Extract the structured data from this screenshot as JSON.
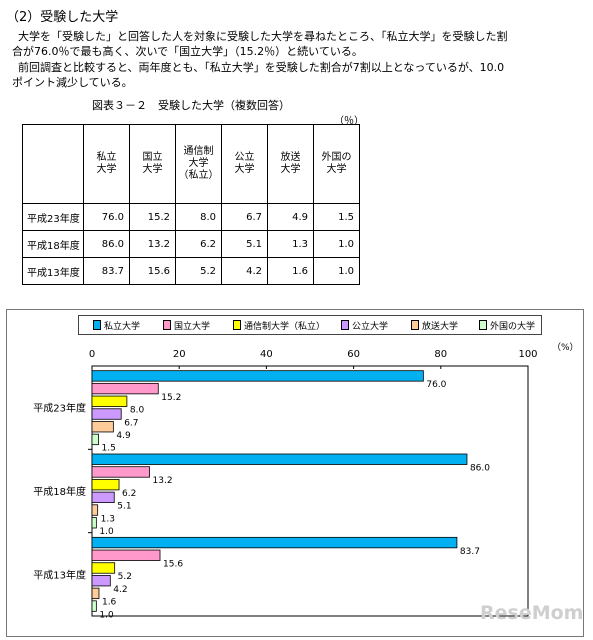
{
  "section_title": "（2）受験した大学",
  "paragraphs": [
    "大学を「受験した」と回答した人を対象に受験した大学を尋ねたところ、「私立大学」を受験した割",
    "合が76.0％で最も高く、次いで「国立大学」（15.2％）と続いている。",
    "前回調査と比較すると、両年度とも、「私立大学」を受験した割合が7割以上となっているが、10.0",
    "ポイント減少している。"
  ],
  "table": {
    "caption": "図表３－２　受験した大学（複数回答）",
    "unit": "（％）",
    "headers": [
      "私立\n大学",
      "国立\n大学",
      "通信制\n大学\n（私立）",
      "公立\n大学",
      "放送\n大学",
      "外国の\n大学"
    ],
    "rows": [
      {
        "label": "平成23年度",
        "cells": [
          "76.0",
          "15.2",
          "8.0",
          "6.7",
          "4.9",
          "1.5"
        ]
      },
      {
        "label": "平成18年度",
        "cells": [
          "86.0",
          "13.2",
          "6.2",
          "5.1",
          "1.3",
          "1.0"
        ]
      },
      {
        "label": "平成13年度",
        "cells": [
          "83.7",
          "15.6",
          "5.2",
          "4.2",
          "1.6",
          "1.0"
        ]
      }
    ]
  },
  "chart_data": {
    "type": "bar",
    "orientation": "horizontal",
    "categories": [
      "平成23年度",
      "平成18年度",
      "平成13年度"
    ],
    "series": [
      {
        "name": "私立大学",
        "color": "#00b0f0",
        "values": [
          76.0,
          86.0,
          83.7
        ]
      },
      {
        "name": "国立大学",
        "color": "#ff99cc",
        "values": [
          15.2,
          13.2,
          15.6
        ]
      },
      {
        "name": "通信制大学（私立）",
        "color": "#ffff00",
        "values": [
          8.0,
          6.2,
          5.2
        ]
      },
      {
        "name": "公立大学",
        "color": "#cc99ff",
        "values": [
          6.7,
          5.1,
          4.2
        ]
      },
      {
        "name": "放送大学",
        "color": "#ffcc99",
        "values": [
          4.9,
          1.3,
          1.6
        ]
      },
      {
        "name": "外国の大学",
        "color": "#ccffcc",
        "values": [
          1.5,
          1.0,
          1.0
        ]
      }
    ],
    "data_labels": [
      [
        "76.0",
        "86.0",
        "83.7"
      ],
      [
        "15.2",
        "13.2",
        "15.6"
      ],
      [
        "8.0",
        "6.2",
        "5.2"
      ],
      [
        "6.7",
        "5.1",
        "4.2"
      ],
      [
        "4.9",
        "1.3",
        "1.6"
      ],
      [
        "1.5",
        "1.0",
        "1.0"
      ]
    ],
    "xticks": [
      "0",
      "20",
      "40",
      "60",
      "80",
      "100"
    ],
    "xlim": [
      0,
      100
    ],
    "unit_label": "（%）",
    "legend_position": "top"
  },
  "watermark": "ReseMom"
}
